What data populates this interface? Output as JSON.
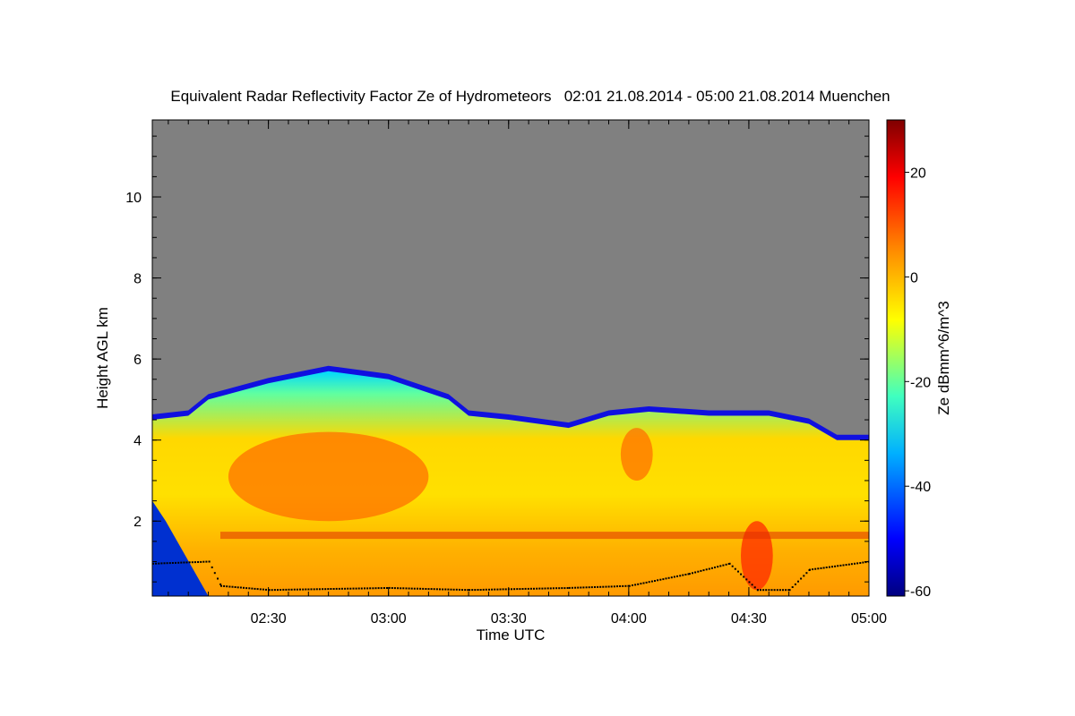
{
  "chart_data": {
    "type": "heatmap",
    "title": "Equivalent Radar Reflectivity Factor Ze of Hydrometeors   02:01 21.08.2014 - 05:00 21.08.2014 Muenchen",
    "xlabel": "Time UTC",
    "ylabel": "Height AGL km",
    "colorbar_label": "Ze dBmm^6/m^3",
    "x_range": [
      "02:01",
      "05:00"
    ],
    "y_range": [
      0.15,
      11.9
    ],
    "color_range": [
      -61,
      30
    ],
    "x_ticks": [
      "02:30",
      "03:00",
      "03:30",
      "04:00",
      "04:30",
      "05:00"
    ],
    "y_ticks": [
      2,
      4,
      6,
      8,
      10
    ],
    "colorbar_ticks": [
      -60,
      -40,
      -20,
      0,
      20
    ],
    "no_data_color": "#808080",
    "grid": false,
    "echo_top_km": [
      {
        "t": "02:01",
        "h": 4.5
      },
      {
        "t": "02:10",
        "h": 4.6
      },
      {
        "t": "02:15",
        "h": 5.0
      },
      {
        "t": "02:30",
        "h": 5.4
      },
      {
        "t": "02:45",
        "h": 5.7
      },
      {
        "t": "03:00",
        "h": 5.5
      },
      {
        "t": "03:15",
        "h": 5.0
      },
      {
        "t": "03:20",
        "h": 4.6
      },
      {
        "t": "03:30",
        "h": 4.5
      },
      {
        "t": "03:45",
        "h": 4.3
      },
      {
        "t": "03:55",
        "h": 4.6
      },
      {
        "t": "04:05",
        "h": 4.7
      },
      {
        "t": "04:20",
        "h": 4.6
      },
      {
        "t": "04:35",
        "h": 4.6
      },
      {
        "t": "04:45",
        "h": 4.4
      },
      {
        "t": "04:52",
        "h": 4.0
      },
      {
        "t": "05:00",
        "h": 4.0
      }
    ],
    "bright_band_km": 1.65,
    "cloud_base_km": [
      {
        "t": "02:01",
        "h": 0.95
      },
      {
        "t": "02:15",
        "h": 1.0
      },
      {
        "t": "02:18",
        "h": 0.4
      },
      {
        "t": "02:30",
        "h": 0.3
      },
      {
        "t": "03:00",
        "h": 0.35
      },
      {
        "t": "03:20",
        "h": 0.3
      },
      {
        "t": "03:45",
        "h": 0.35
      },
      {
        "t": "04:00",
        "h": 0.4
      },
      {
        "t": "04:15",
        "h": 0.7
      },
      {
        "t": "04:25",
        "h": 0.95
      },
      {
        "t": "04:32",
        "h": 0.3
      },
      {
        "t": "04:40",
        "h": 0.3
      },
      {
        "t": "04:45",
        "h": 0.8
      },
      {
        "t": "05:00",
        "h": 1.0
      }
    ],
    "high_cells": [
      {
        "t_start": "02:20",
        "t_end": "03:10",
        "h_low": 2.0,
        "h_high": 4.2,
        "ze": 8
      },
      {
        "t_start": "03:58",
        "t_end": "04:06",
        "h_low": 3.0,
        "h_high": 4.3,
        "ze": 10
      },
      {
        "t_start": "04:28",
        "t_end": "04:36",
        "h_low": 0.3,
        "h_high": 2.0,
        "ze": 18
      }
    ]
  }
}
